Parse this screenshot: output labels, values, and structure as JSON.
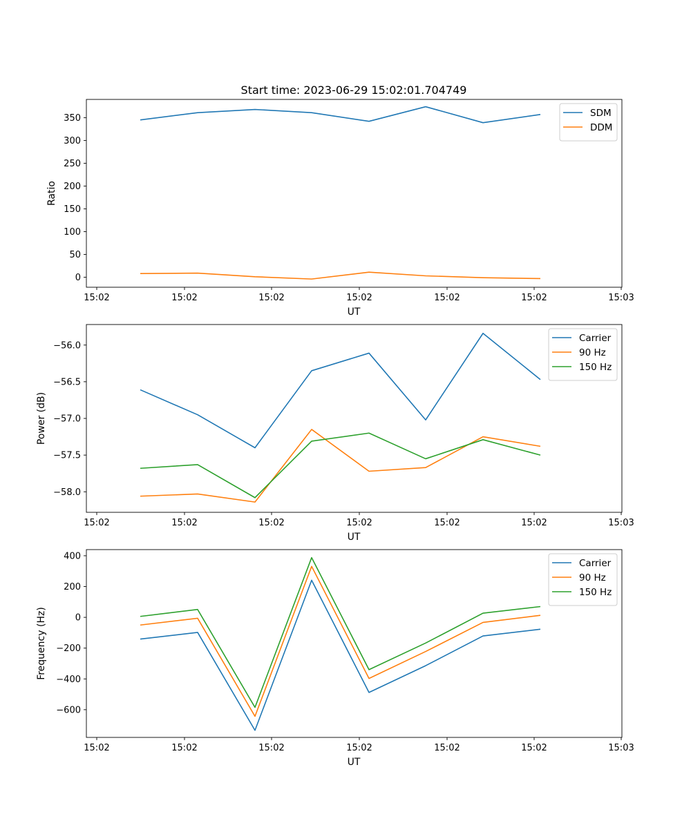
{
  "figure": {
    "title": "Start time: 2023-06-29 15:02:01.704749"
  },
  "chart_data": [
    {
      "type": "line",
      "title": "Start time: 2023-06-29 15:02:01.704749",
      "xlabel": "UT",
      "ylabel": "Ratio",
      "x_tick_labels": [
        "15:02",
        "15:02",
        "15:02",
        "15:02",
        "15:02",
        "15:02",
        "15:03"
      ],
      "y_ticks": [
        0,
        50,
        100,
        150,
        200,
        250,
        300,
        350
      ],
      "ylim": [
        -22,
        390
      ],
      "legend_position": "top-right",
      "grid": false,
      "series": [
        {
          "name": "SDM",
          "color": "#1f77b4",
          "values": [
            345,
            361,
            368,
            361,
            342,
            374,
            339,
            357
          ]
        },
        {
          "name": "DDM",
          "color": "#ff7f0e",
          "values": [
            8,
            9,
            1,
            -4,
            11,
            3,
            -1,
            -3
          ]
        }
      ]
    },
    {
      "type": "line",
      "title": "",
      "xlabel": "UT",
      "ylabel": "Power (dB)",
      "x_tick_labels": [
        "15:02",
        "15:02",
        "15:02",
        "15:02",
        "15:02",
        "15:02",
        "15:03"
      ],
      "y_ticks": [
        -58.0,
        -57.5,
        -57.0,
        -56.5,
        -56.0
      ],
      "y_tick_labels": [
        "−58.0",
        "−57.5",
        "−57.0",
        "−56.5",
        "−56.0"
      ],
      "ylim": [
        -58.28,
        -55.72
      ],
      "legend_position": "top-right",
      "grid": false,
      "series": [
        {
          "name": "Carrier",
          "color": "#1f77b4",
          "values": [
            -56.61,
            -56.95,
            -57.4,
            -56.35,
            -56.11,
            -57.02,
            -55.84,
            -56.47
          ]
        },
        {
          "name": "90 Hz",
          "color": "#ff7f0e",
          "values": [
            -58.06,
            -58.03,
            -58.14,
            -57.15,
            -57.72,
            -57.67,
            -57.25,
            -57.38
          ]
        },
        {
          "name": "150 Hz",
          "color": "#2ca02c",
          "values": [
            -57.68,
            -57.63,
            -58.08,
            -57.31,
            -57.2,
            -57.55,
            -57.29,
            -57.5
          ]
        }
      ]
    },
    {
      "type": "line",
      "title": "",
      "xlabel": "UT",
      "ylabel": "Frequency (Hz)",
      "x_tick_labels": [
        "15:02",
        "15:02",
        "15:02",
        "15:02",
        "15:02",
        "15:02",
        "15:03"
      ],
      "y_ticks": [
        -600,
        -400,
        -200,
        0,
        200,
        400
      ],
      "y_tick_labels": [
        "−600",
        "−400",
        "−200",
        "0",
        "200",
        "400"
      ],
      "ylim": [
        -780,
        440
      ],
      "legend_position": "top-right",
      "grid": false,
      "series": [
        {
          "name": "Carrier",
          "color": "#1f77b4",
          "values": [
            -141,
            -98,
            -734,
            241,
            -488,
            -314,
            -121,
            -77
          ]
        },
        {
          "name": "90 Hz",
          "color": "#ff7f0e",
          "values": [
            -50,
            -6,
            -643,
            331,
            -397,
            -222,
            -33,
            13
          ]
        },
        {
          "name": "150 Hz",
          "color": "#2ca02c",
          "values": [
            6,
            51,
            -585,
            388,
            -340,
            -167,
            27,
            70
          ]
        }
      ]
    }
  ]
}
